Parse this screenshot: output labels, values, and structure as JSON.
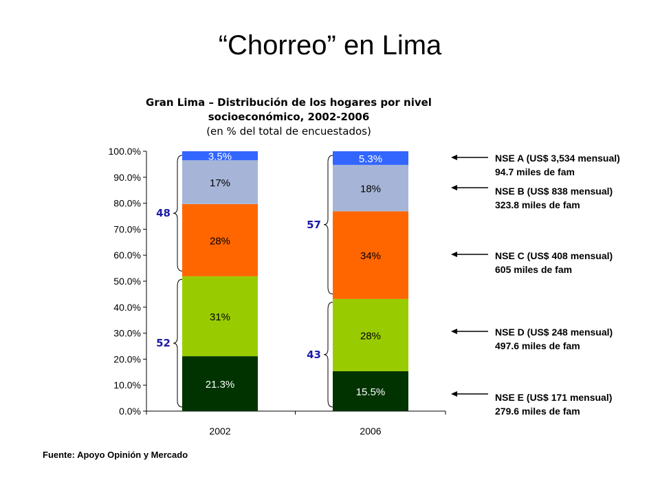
{
  "slide": {
    "title": "“Chorreo” en Lima",
    "source": "Fuente: Apoyo Opinión y Mercado"
  },
  "chart_data": {
    "type": "bar",
    "stacked": true,
    "title": "Gran Lima – Distribución de los hogares por nivel socioeconómico, 2002-2006",
    "subtitle": "(en % del total de encuestados)",
    "categories": [
      "2002",
      "2006"
    ],
    "ylim": [
      0,
      100
    ],
    "yticks": [
      "0.0%",
      "10.0%",
      "20.0%",
      "30.0%",
      "40.0%",
      "50.0%",
      "60.0%",
      "70.0%",
      "80.0%",
      "90.0%",
      "100.0%"
    ],
    "ytick_values": [
      0,
      10,
      20,
      30,
      40,
      50,
      60,
      70,
      80,
      90,
      100
    ],
    "series": [
      {
        "key": "E",
        "values": [
          21.3,
          15.5
        ],
        "labels": [
          "21.3%",
          "15.5%"
        ],
        "color": "#003300",
        "label_color": "#ffffff"
      },
      {
        "key": "D",
        "values": [
          31,
          28
        ],
        "labels": [
          "31%",
          "28%"
        ],
        "color": "#99cc00",
        "label_color": "#000000"
      },
      {
        "key": "C",
        "values": [
          28,
          34
        ],
        "labels": [
          "28%",
          "34%"
        ],
        "color": "#ff6600",
        "label_color": "#000000"
      },
      {
        "key": "B",
        "values": [
          17,
          18
        ],
        "labels": [
          "17%",
          "18%"
        ],
        "color": "#a6b5d7",
        "label_color": "#000000"
      },
      {
        "key": "A",
        "values": [
          3.5,
          5.3
        ],
        "labels": [
          "3.5%",
          "5.3%"
        ],
        "color": "#3366ff",
        "label_color": "#ffffff"
      }
    ],
    "brackets": [
      {
        "category": "2002",
        "label": "52",
        "from": 0,
        "to": 52.3
      },
      {
        "category": "2002",
        "label": "48",
        "from": 52.3,
        "to": 100
      },
      {
        "category": "2006",
        "label": "43",
        "from": 0,
        "to": 43.5
      },
      {
        "category": "2006",
        "label": "57",
        "from": 43.5,
        "to": 100
      }
    ],
    "bracket_color": "#1a1aa6",
    "legend": [
      {
        "key": "A",
        "line1": "NSE A (US$ 3,534 mensual)",
        "line2": "94.7 miles de fam"
      },
      {
        "key": "B",
        "line1": "NSE B (US$ 838 mensual)",
        "line2": "323.8 miles de fam"
      },
      {
        "key": "C",
        "line1": "NSE C (US$ 408 mensual)",
        "line2": "605 miles de fam"
      },
      {
        "key": "D",
        "line1": "NSE D (US$ 248 mensual)",
        "line2": "497.6 miles de fam"
      },
      {
        "key": "E",
        "line1": "NSE E (US$ 171 mensual)",
        "line2": "279.6 miles de fam"
      }
    ]
  }
}
